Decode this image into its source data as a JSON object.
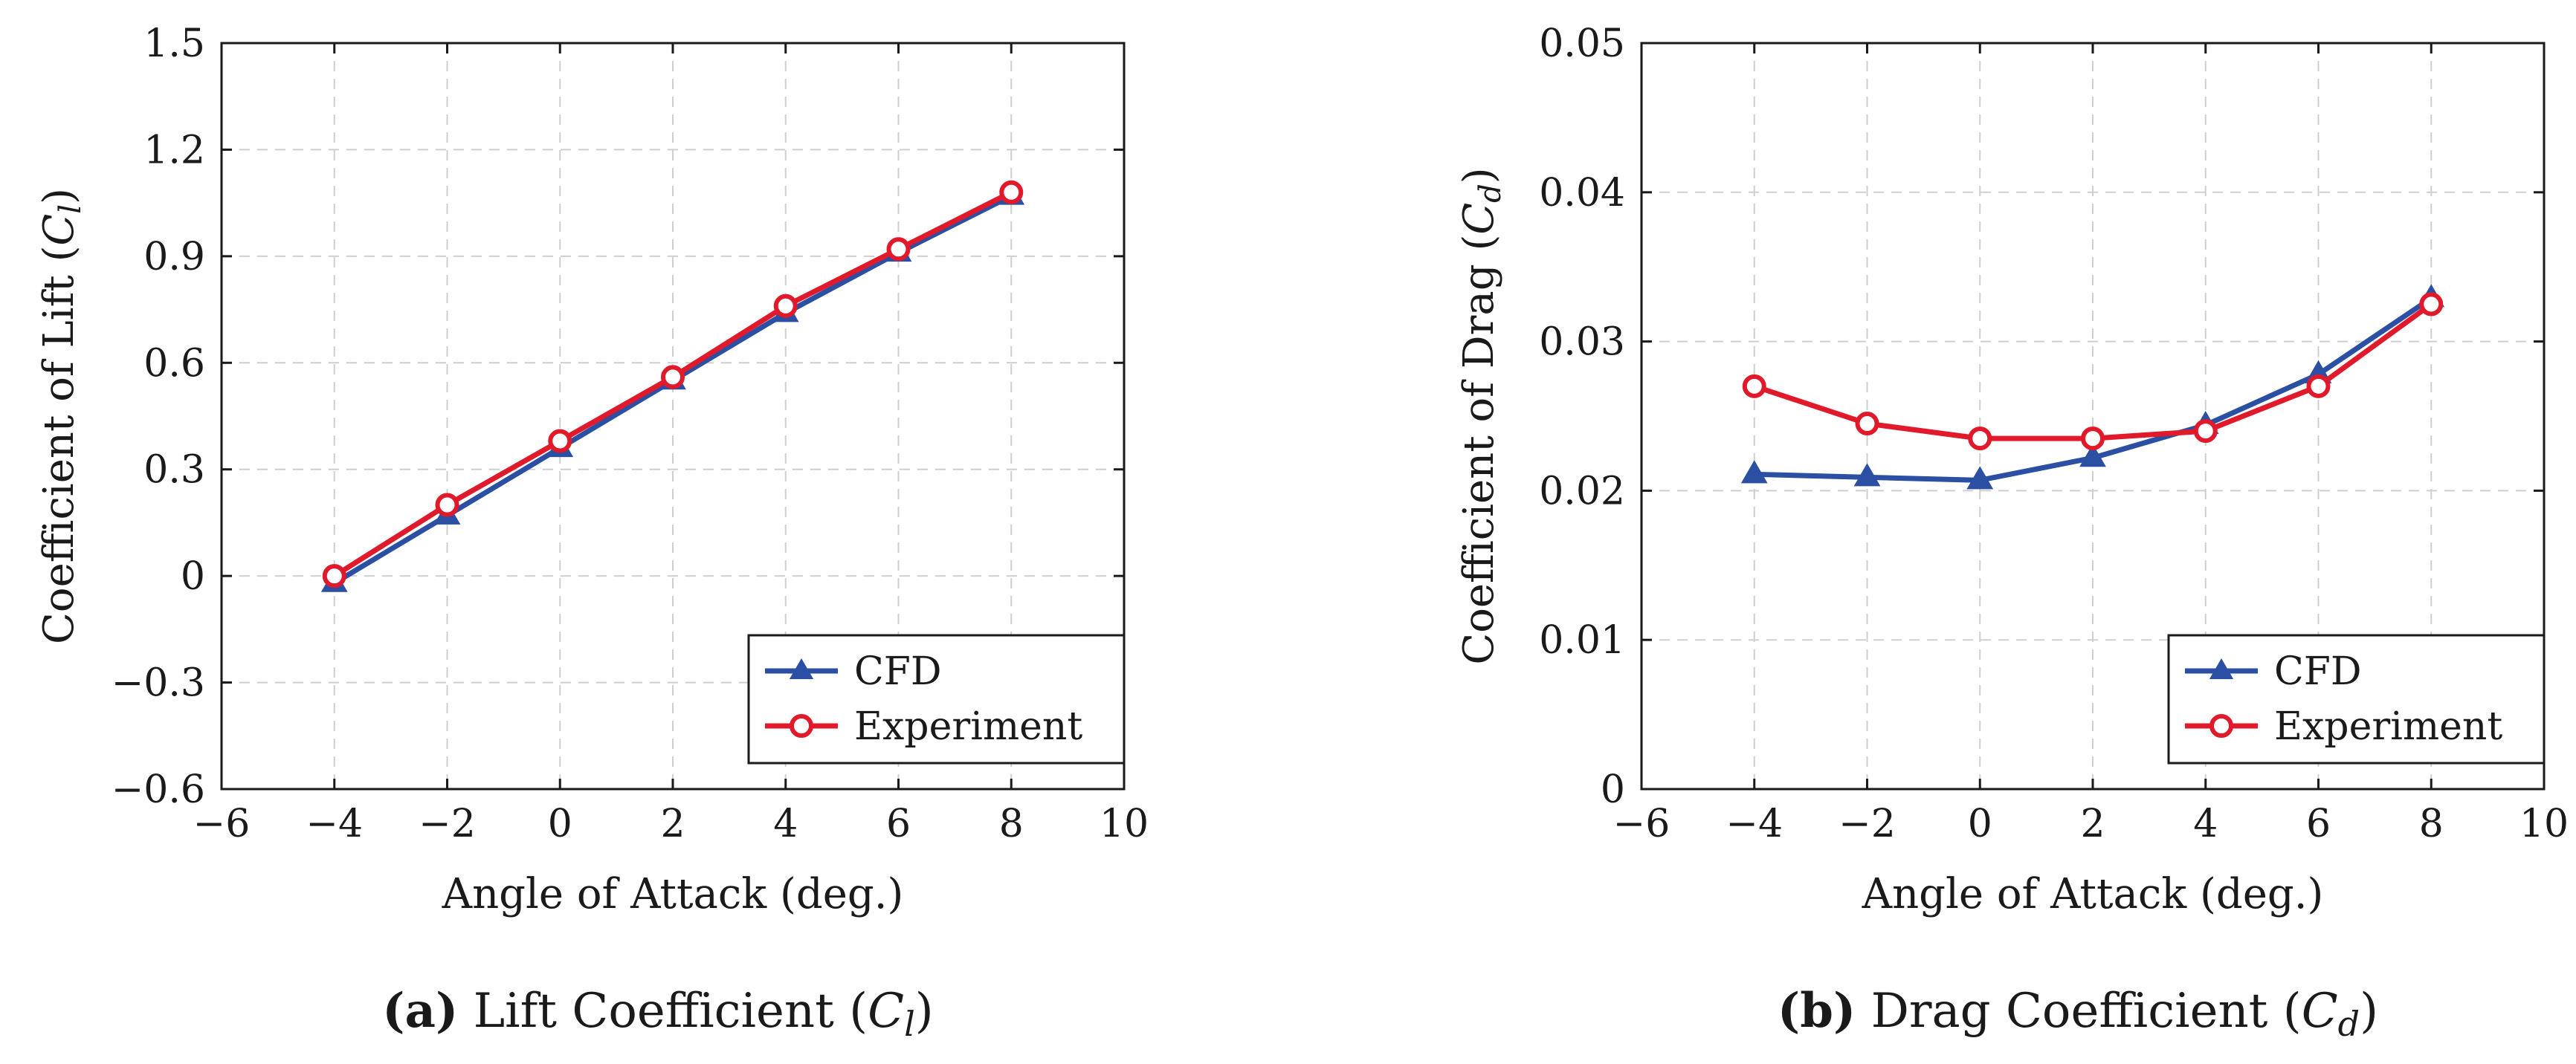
{
  "chart_data": [
    {
      "type": "line",
      "xlabel": "Angle of Attack (deg.)",
      "ylabel_prefix": "Coefficient of Lift (",
      "ylabel_sym": "C",
      "ylabel_sub": "l",
      "ylabel_suffix": ")",
      "xlim": [
        -6,
        10
      ],
      "ylim": [
        -0.6,
        1.5
      ],
      "xticks": [
        -6,
        -4,
        -2,
        0,
        2,
        4,
        6,
        8,
        10
      ],
      "xtick_labels": [
        "−6",
        "−4",
        "−2",
        "0",
        "2",
        "4",
        "6",
        "8",
        "10"
      ],
      "yticks": [
        -0.6,
        -0.3,
        0,
        0.3,
        0.6,
        0.9,
        1.2,
        1.5
      ],
      "ytick_labels": [
        "−0.6",
        "−0.3",
        "0",
        "0.3",
        "0.6",
        "0.9",
        "1.2",
        "1.5"
      ],
      "grid": true,
      "legend": "bottom-right",
      "x": [
        -4,
        -2,
        0,
        2,
        4,
        6,
        8
      ],
      "series": [
        {
          "name": "CFD",
          "marker": "triangle",
          "color": "#2b4fa3",
          "values": [
            -0.02,
            0.17,
            0.36,
            0.55,
            0.74,
            0.91,
            1.07
          ]
        },
        {
          "name": "Experiment",
          "marker": "circle",
          "color": "#e0192b",
          "values": [
            0.0,
            0.2,
            0.38,
            0.56,
            0.76,
            0.92,
            1.08
          ]
        }
      ],
      "caption_label": "(a)",
      "caption_prefix": "Lift Coefficient (",
      "caption_sym": "C",
      "caption_sub": "l",
      "caption_suffix": ")"
    },
    {
      "type": "line",
      "xlabel": "Angle of Attack (deg.)",
      "ylabel_prefix": "Coefficient of Drag (",
      "ylabel_sym": "C",
      "ylabel_sub": "d",
      "ylabel_suffix": ")",
      "xlim": [
        -6,
        10
      ],
      "ylim": [
        0,
        0.05
      ],
      "xticks": [
        -6,
        -4,
        -2,
        0,
        2,
        4,
        6,
        8,
        10
      ],
      "xtick_labels": [
        "−6",
        "−4",
        "−2",
        "0",
        "2",
        "4",
        "6",
        "8",
        "10"
      ],
      "yticks": [
        0,
        0.01,
        0.02,
        0.03,
        0.04,
        0.05
      ],
      "ytick_labels": [
        "0",
        "0.01",
        "0.02",
        "0.03",
        "0.04",
        "0.05"
      ],
      "grid": true,
      "legend": "bottom-right",
      "x": [
        -4,
        -2,
        0,
        2,
        4,
        6,
        8
      ],
      "series": [
        {
          "name": "CFD",
          "marker": "triangle",
          "color": "#2b4fa3",
          "values": [
            0.0211,
            0.0209,
            0.0207,
            0.0222,
            0.0244,
            0.0278,
            0.0329
          ]
        },
        {
          "name": "Experiment",
          "marker": "circle",
          "color": "#e0192b",
          "values": [
            0.027,
            0.0245,
            0.0235,
            0.0235,
            0.024,
            0.027,
            0.0325
          ]
        }
      ],
      "caption_label": "(b)",
      "caption_prefix": "Drag Coefficient (",
      "caption_sym": "C",
      "caption_sub": "d",
      "caption_suffix": ")"
    }
  ]
}
